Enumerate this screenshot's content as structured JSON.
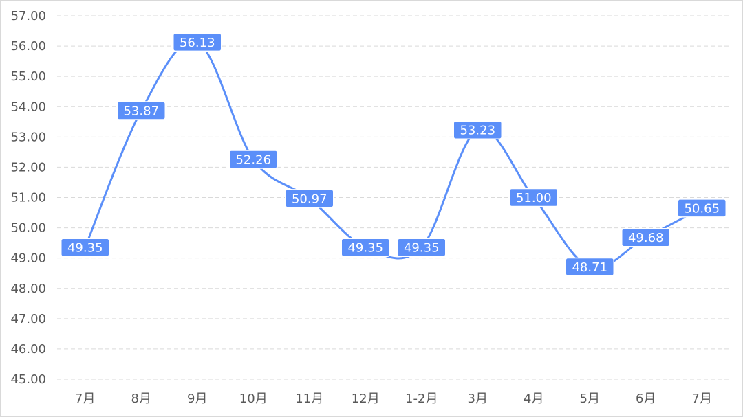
{
  "chart_data": {
    "type": "line",
    "title": "",
    "xlabel": "",
    "ylabel": "",
    "categories": [
      "7月",
      "8月",
      "9月",
      "10月",
      "11月",
      "12月",
      "1-2月",
      "3月",
      "4月",
      "5月",
      "6月",
      "7月"
    ],
    "series": [
      {
        "values": [
          49.35,
          53.87,
          56.13,
          52.26,
          50.97,
          49.35,
          49.35,
          53.23,
          51.0,
          48.71,
          49.68,
          50.65
        ],
        "labels": [
          "49.35",
          "53.87",
          "56.13",
          "52.26",
          "50.97",
          "49.35",
          "49.35",
          "53.23",
          "51.00",
          "48.71",
          "49.68",
          "50.65"
        ]
      }
    ],
    "ylim": [
      45,
      57
    ],
    "ytick_values": [
      45,
      46,
      47,
      48,
      49,
      50,
      51,
      52,
      53,
      54,
      55,
      56,
      57
    ],
    "ytick_labels": [
      "45.00",
      "46.00",
      "47.00",
      "48.00",
      "49.00",
      "50.00",
      "51.00",
      "52.00",
      "53.00",
      "54.00",
      "55.00",
      "56.00",
      "57.00"
    ],
    "grid": true,
    "smooth": true,
    "legend": "none",
    "colors": {
      "line": "#5b8ff9",
      "label_bg": "#5b8ff9",
      "label_text": "#ffffff",
      "grid": "#d9d9d9",
      "tick_text": "#595959"
    }
  }
}
